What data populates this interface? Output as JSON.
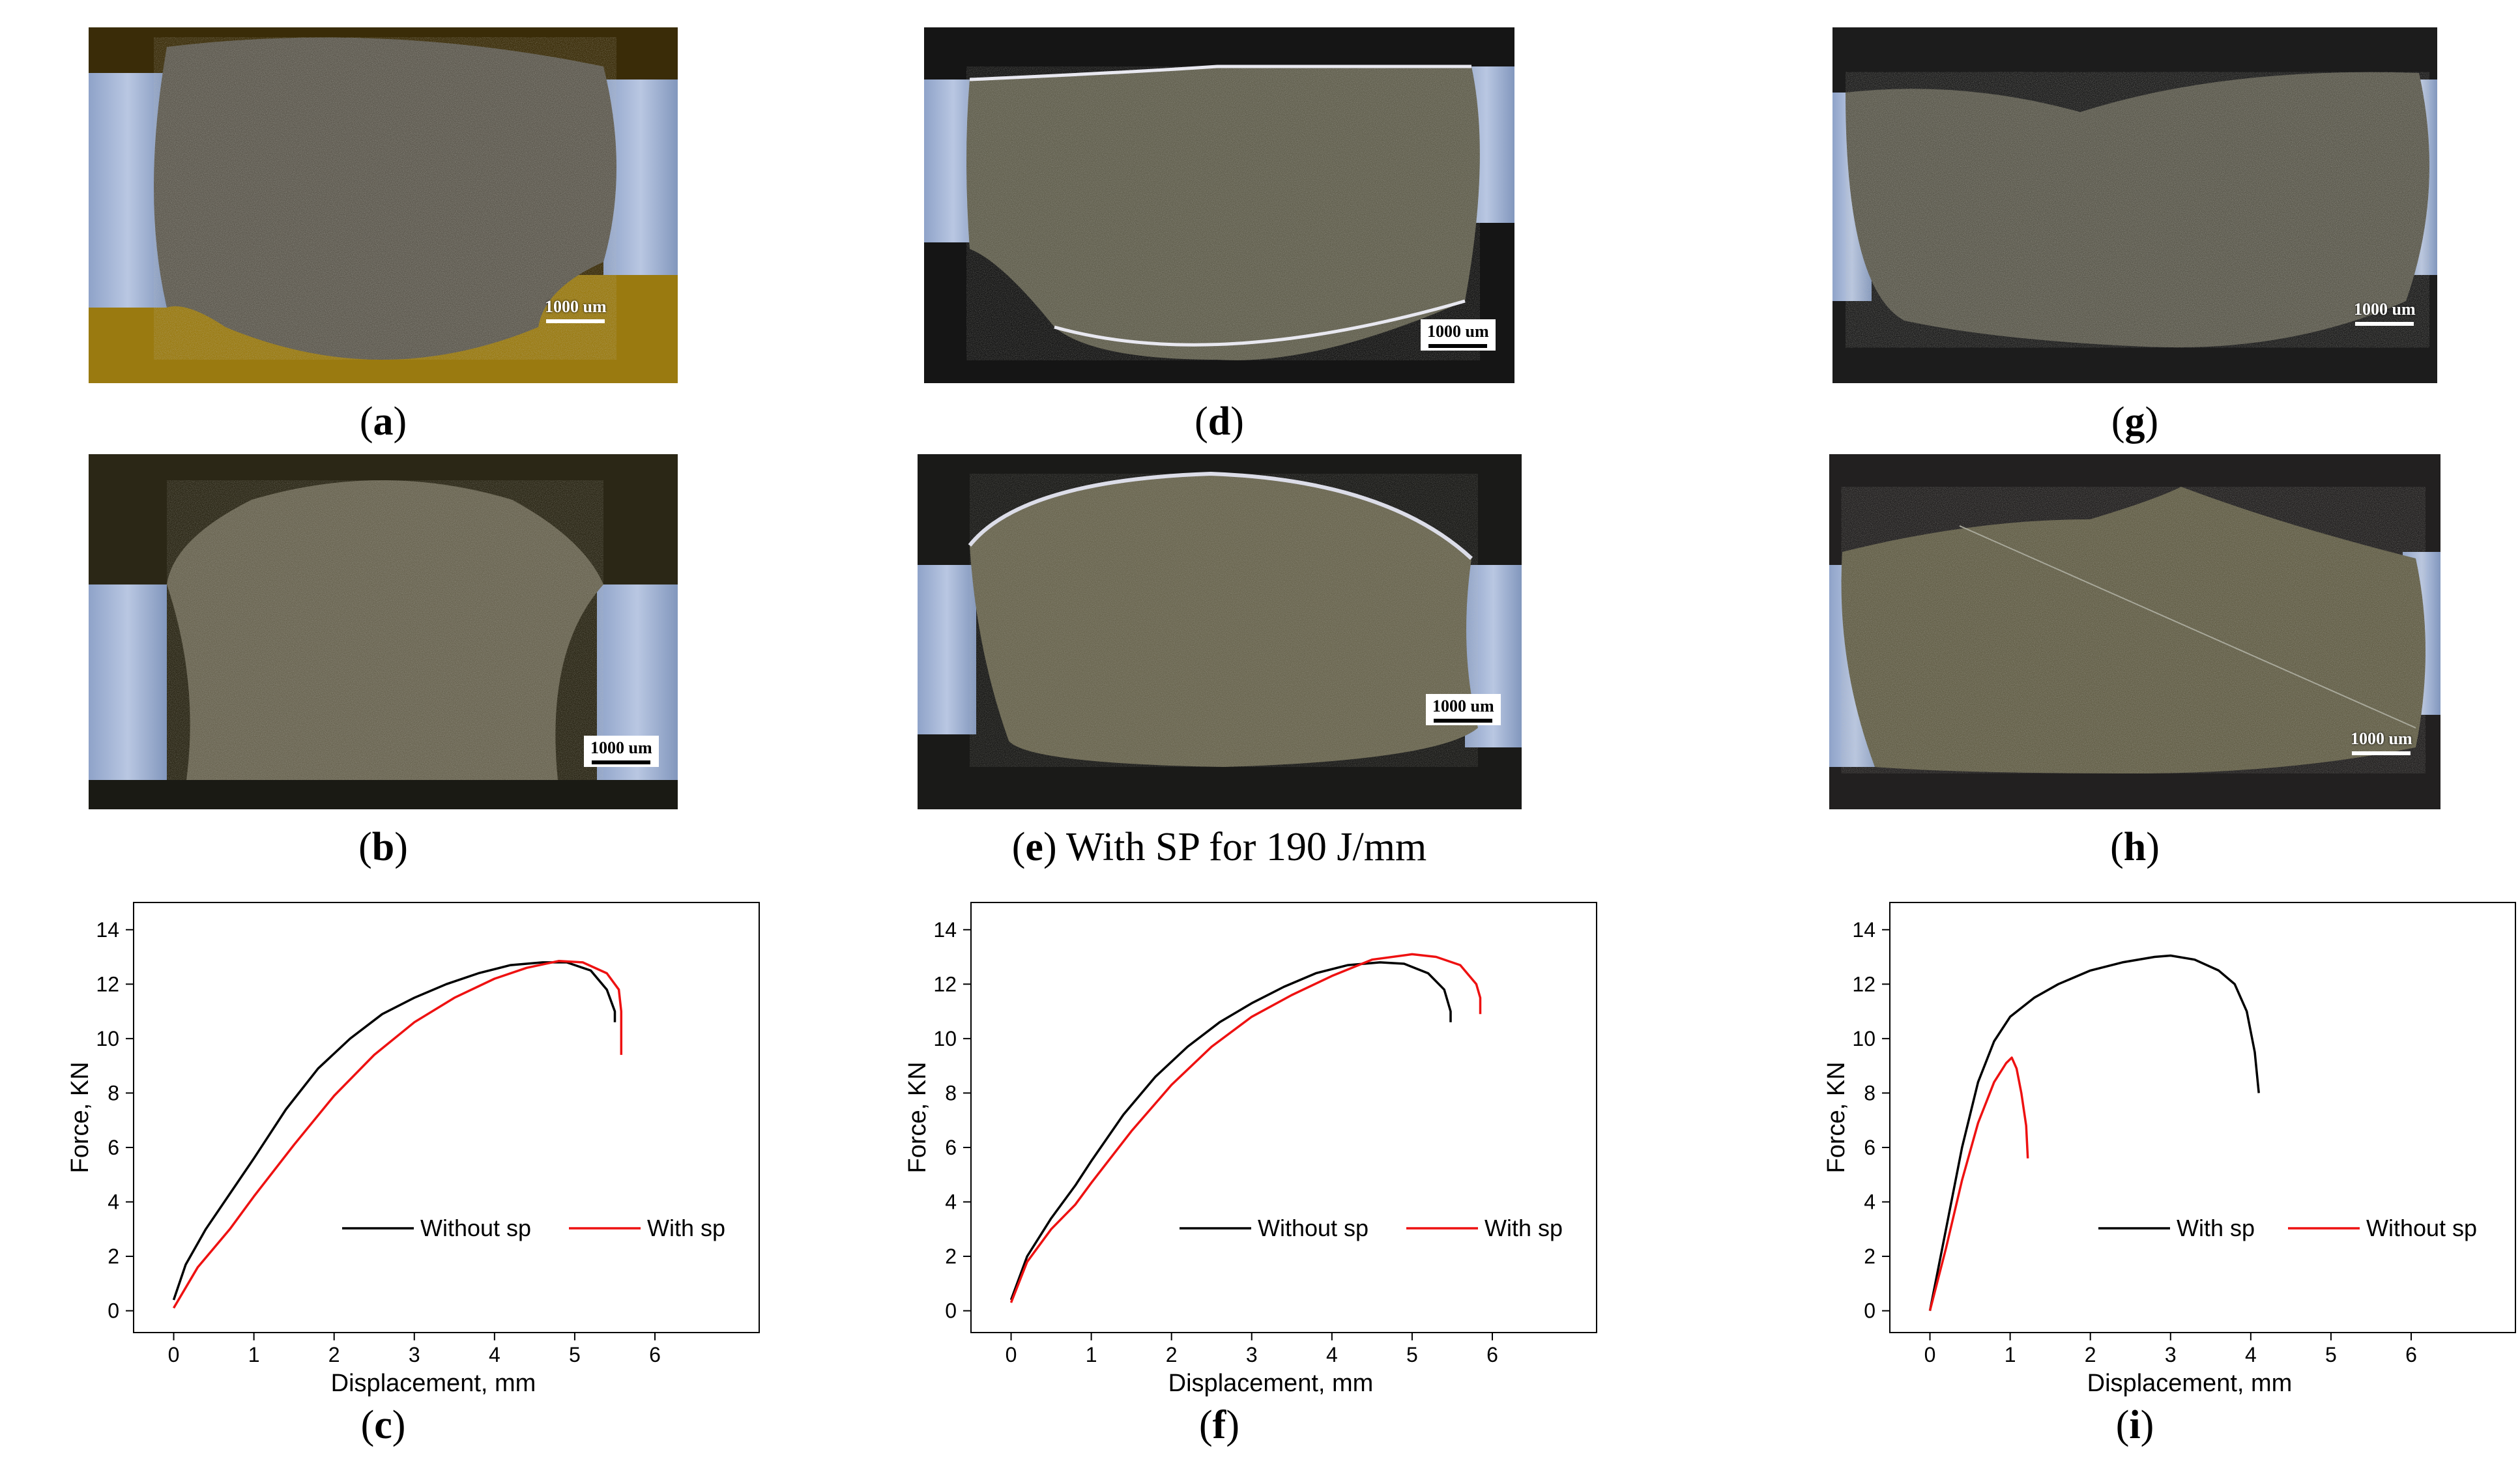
{
  "colors": {
    "series_black": "#000000",
    "series_red": "#ee1111"
  },
  "micrographs": [
    {
      "id": "a",
      "label": "a",
      "caption_suffix": "",
      "scale_text": "1000 um"
    },
    {
      "id": "b",
      "label": "b",
      "caption_suffix": "",
      "scale_text": "1000 um"
    },
    {
      "id": "d",
      "label": "d",
      "caption_suffix": "",
      "scale_text": "1000 um"
    },
    {
      "id": "e",
      "label": "e",
      "caption_suffix": " With SP for 190 J/mm",
      "scale_text": "1000 um"
    },
    {
      "id": "g",
      "label": "g",
      "caption_suffix": "",
      "scale_text": "1000 um"
    },
    {
      "id": "h",
      "label": "h",
      "caption_suffix": "",
      "scale_text": "1000 um"
    }
  ],
  "chart_data": [
    {
      "id": "c",
      "label": "c",
      "type": "line",
      "xlabel": "Displacement, mm",
      "ylabel": "Force, KN",
      "xlim": [
        -0.5,
        7.3
      ],
      "ylim": [
        -0.8,
        15
      ],
      "xticks": [
        0,
        1,
        2,
        3,
        4,
        5,
        6
      ],
      "yticks": [
        0,
        2,
        4,
        6,
        8,
        10,
        12,
        14
      ],
      "legend_position": "lower-right",
      "series": [
        {
          "name": "Without sp",
          "color": "black",
          "x": [
            0,
            0.15,
            0.4,
            0.7,
            1.0,
            1.4,
            1.8,
            2.2,
            2.6,
            3.0,
            3.4,
            3.8,
            4.2,
            4.6,
            4.9,
            5.2,
            5.4,
            5.5,
            5.5
          ],
          "y": [
            0.4,
            1.7,
            3.0,
            4.3,
            5.6,
            7.4,
            8.9,
            10.0,
            10.9,
            11.5,
            12.0,
            12.4,
            12.7,
            12.8,
            12.8,
            12.5,
            11.8,
            11.0,
            10.6
          ]
        },
        {
          "name": "With sp",
          "color": "red",
          "x": [
            0,
            0.3,
            0.7,
            1.0,
            1.5,
            2.0,
            2.5,
            3.0,
            3.5,
            4.0,
            4.4,
            4.8,
            5.1,
            5.4,
            5.55,
            5.58,
            5.58
          ],
          "y": [
            0.1,
            1.6,
            3.0,
            4.2,
            6.1,
            7.9,
            9.4,
            10.6,
            11.5,
            12.2,
            12.6,
            12.85,
            12.8,
            12.4,
            11.8,
            11.0,
            9.4
          ]
        }
      ]
    },
    {
      "id": "f",
      "label": "f",
      "type": "line",
      "xlabel": "Displacement, mm",
      "ylabel": "Force, KN",
      "xlim": [
        -0.5,
        7.3
      ],
      "ylim": [
        -0.8,
        15
      ],
      "xticks": [
        0,
        1,
        2,
        3,
        4,
        5,
        6
      ],
      "yticks": [
        0,
        2,
        4,
        6,
        8,
        10,
        12,
        14
      ],
      "legend_position": "lower-right",
      "series": [
        {
          "name": "Without sp",
          "color": "black",
          "x": [
            0,
            0.2,
            0.5,
            0.8,
            1.0,
            1.4,
            1.8,
            2.2,
            2.6,
            3.0,
            3.4,
            3.8,
            4.2,
            4.6,
            4.9,
            5.2,
            5.4,
            5.48,
            5.48
          ],
          "y": [
            0.4,
            2.0,
            3.4,
            4.6,
            5.5,
            7.2,
            8.6,
            9.7,
            10.6,
            11.3,
            11.9,
            12.4,
            12.7,
            12.8,
            12.75,
            12.4,
            11.8,
            11.0,
            10.6
          ]
        },
        {
          "name": "With sp",
          "color": "red",
          "x": [
            0,
            0.2,
            0.5,
            0.8,
            1.0,
            1.5,
            2.0,
            2.5,
            3.0,
            3.5,
            4.0,
            4.5,
            5.0,
            5.3,
            5.6,
            5.8,
            5.85,
            5.85
          ],
          "y": [
            0.3,
            1.8,
            3.0,
            3.9,
            4.7,
            6.6,
            8.3,
            9.7,
            10.8,
            11.6,
            12.3,
            12.9,
            13.1,
            13.0,
            12.7,
            12.0,
            11.5,
            10.9
          ]
        }
      ]
    },
    {
      "id": "i",
      "label": "i",
      "type": "line",
      "xlabel": "Displacement, mm",
      "ylabel": "Force, KN",
      "xlim": [
        -0.5,
        7.3
      ],
      "ylim": [
        -0.8,
        15
      ],
      "xticks": [
        0,
        1,
        2,
        3,
        4,
        5,
        6
      ],
      "yticks": [
        0,
        2,
        4,
        6,
        8,
        10,
        12,
        14
      ],
      "legend_position": "lower-right",
      "series": [
        {
          "name": "With sp",
          "color": "black",
          "x": [
            0,
            0.2,
            0.4,
            0.6,
            0.8,
            1.0,
            1.3,
            1.6,
            2.0,
            2.4,
            2.8,
            3.0,
            3.3,
            3.6,
            3.8,
            3.95,
            4.05,
            4.1
          ],
          "y": [
            0,
            3.0,
            6.0,
            8.4,
            9.9,
            10.8,
            11.5,
            12.0,
            12.5,
            12.8,
            13.0,
            13.05,
            12.9,
            12.5,
            12.0,
            11.0,
            9.5,
            8.0
          ]
        },
        {
          "name": "Without sp",
          "color": "red",
          "x": [
            0,
            0.2,
            0.4,
            0.6,
            0.8,
            0.95,
            1.02,
            1.08,
            1.14,
            1.2,
            1.22
          ],
          "y": [
            0,
            2.3,
            4.8,
            6.9,
            8.4,
            9.1,
            9.3,
            8.9,
            8.0,
            6.8,
            5.6
          ]
        }
      ]
    }
  ]
}
